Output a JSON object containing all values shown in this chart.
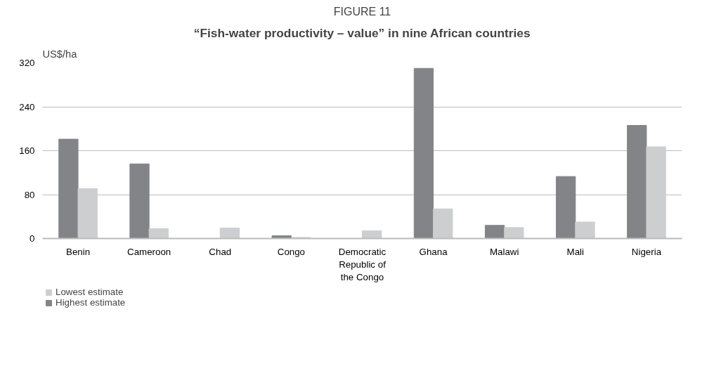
{
  "chart_data": {
    "type": "bar",
    "title": "FIGURE 11",
    "subtitle": "“Fish-water productivity – value” in nine African countries",
    "ylabel": "US$/ha",
    "categories": [
      "Benin",
      "Cameroon",
      "Chad",
      "Congo",
      "Democratic Republic of the Congo",
      "Ghana",
      "Malawi",
      "Mali",
      "Nigeria"
    ],
    "series": [
      {
        "name": "Highest estimate",
        "color": "#838488",
        "values": [
          181,
          136,
          null,
          5,
          null,
          310,
          24,
          113,
          206
        ]
      },
      {
        "name": "Lowest estimate",
        "color": "#cdcecf",
        "values": [
          91,
          18,
          19,
          2,
          14,
          54,
          20,
          30,
          167
        ]
      }
    ],
    "ylim": [
      0,
      320
    ],
    "yticks": [
      0,
      80,
      160,
      240,
      320
    ],
    "grid": "y",
    "legend": "bottom left"
  }
}
